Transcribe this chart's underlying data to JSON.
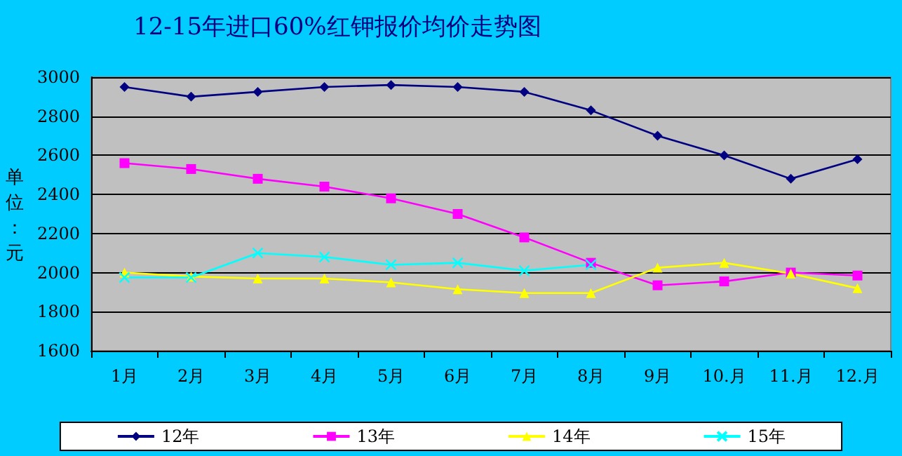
{
  "chart_data": {
    "type": "line",
    "title": "12-15年进口60%红钾报价均价走势图",
    "ylabel": "单位：元",
    "categories": [
      "1月",
      "2月",
      "3月",
      "4月",
      "5月",
      "6月",
      "7月",
      "8月",
      "9月",
      "10.月",
      "11.月",
      "12.月"
    ],
    "series": [
      {
        "name": "12年",
        "color": "#000080",
        "marker": "diamond",
        "values": [
          2950,
          2900,
          2925,
          2950,
          2960,
          2950,
          2925,
          2830,
          2700,
          2600,
          2480,
          2580
        ]
      },
      {
        "name": "13年",
        "color": "#ff00ff",
        "marker": "square",
        "values": [
          2560,
          2530,
          2480,
          2440,
          2380,
          2300,
          2180,
          2050,
          1935,
          1955,
          2000,
          1985
        ]
      },
      {
        "name": "14年",
        "color": "#ffff00",
        "marker": "triangle",
        "values": [
          2000,
          1980,
          1970,
          1970,
          1950,
          1915,
          1895,
          1895,
          2025,
          2050,
          1995,
          1920
        ]
      },
      {
        "name": "15年",
        "color": "#00ffff",
        "marker": "cross",
        "values": [
          1975,
          1975,
          2100,
          2080,
          2040,
          2050,
          2010,
          2040,
          null,
          null,
          null,
          null
        ]
      }
    ],
    "ylim": [
      1600,
      3000
    ],
    "yticks": [
      1600,
      1800,
      2000,
      2200,
      2400,
      2600,
      2800,
      3000
    ],
    "grid": "y",
    "legend": "bottom"
  }
}
